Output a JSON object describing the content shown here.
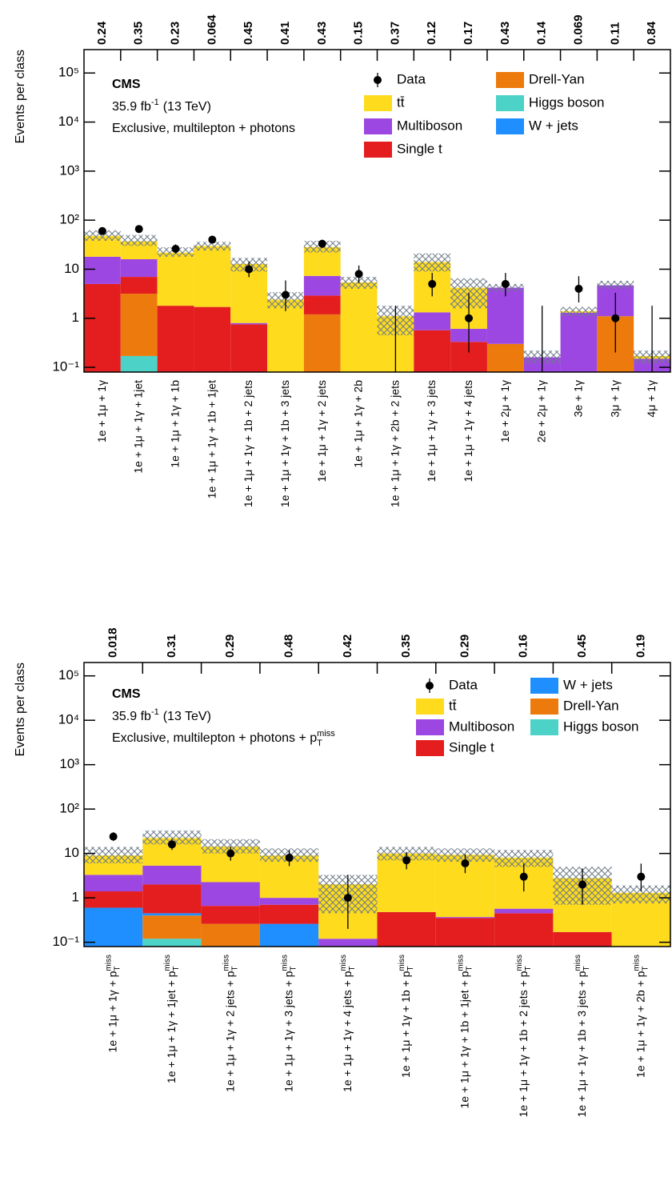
{
  "chart_data": [
    {
      "type": "bar",
      "stacked": true,
      "log_scale": true,
      "title": "CMS",
      "lumi": "35.9 fb",
      "lumi_exponent": "-1",
      "energy": "(13 TeV)",
      "subtitle": "Exclusive, multilepton + photons",
      "ylabel": "Events per class",
      "categories": [
        "1e + 1μ + 1γ",
        "1e + 1μ + 1γ + 1jet",
        "1e + 1μ + 1γ + 1b",
        "1e + 1μ + 1γ + 1b + 1jet",
        "1e + 1μ + 1γ + 1b + 2 jets",
        "1e + 1μ + 1γ + 1b + 3 jets",
        "1e + 1μ + 1γ + 2 jets",
        "1e + 1μ + 1γ + 2b",
        "1e + 1μ + 1γ + 2b + 2 jets",
        "1e + 1μ + 1γ + 3 jets",
        "1e + 1μ + 1γ + 4 jets",
        "1e + 2μ + 1γ",
        "2e + 2μ + 1γ",
        "3e + 1γ",
        "3μ + 1γ",
        "4μ + 1γ"
      ],
      "p_values": [
        0.24,
        0.35,
        0.23,
        0.064,
        0.45,
        0.41,
        0.43,
        0.15,
        0.37,
        0.12,
        0.17,
        0.43,
        0.14,
        0.069,
        0.11,
        0.84
      ],
      "series": [
        {
          "name": "W + jets",
          "color": "#1f8fff",
          "values": [
            0,
            0,
            0,
            0,
            0,
            0,
            0,
            0,
            0,
            0,
            0,
            0,
            0,
            0,
            0,
            0
          ]
        },
        {
          "name": "Higgs boson",
          "color": "#4dd2c8",
          "values": [
            0,
            0.17,
            0,
            0,
            0,
            0,
            0,
            0,
            0,
            0,
            0,
            0,
            0,
            0,
            0,
            0
          ]
        },
        {
          "name": "Drell-Yan",
          "color": "#ec7a0c",
          "values": [
            0,
            3.0,
            0,
            0,
            0,
            0,
            1.2,
            0,
            0,
            0,
            0,
            0.3,
            0,
            0,
            1.1,
            0
          ]
        },
        {
          "name": "Single t",
          "color": "#e41e1e",
          "values": [
            5,
            3.8,
            1.8,
            1.7,
            0.75,
            0,
            1.7,
            0,
            0,
            0.57,
            0.33,
            0,
            0,
            0,
            0,
            0
          ]
        },
        {
          "name": "Multiboson",
          "color": "#9d47e2",
          "values": [
            13,
            9,
            0,
            0,
            0.05,
            0,
            4.4,
            0,
            0,
            0.75,
            0.28,
            3.9,
            0.16,
            1.3,
            3.6,
            0.15
          ]
        },
        {
          "name": "tt̄",
          "color": "#fedb1d",
          "values": [
            30,
            21,
            20,
            28,
            12,
            2.4,
            21,
            5.4,
            1.1,
            12.7,
            3.6,
            0,
            0,
            0.1,
            0,
            0.02
          ]
        }
      ],
      "uncertainty": {
        "low": [
          38,
          30,
          18,
          24,
          9,
          1.6,
          22,
          4,
          0.45,
          9,
          1.6,
          3.5,
          0.12,
          1.1,
          4,
          0.12
        ],
        "high": [
          62,
          50,
          28,
          36,
          17,
          3.4,
          38,
          7,
          1.8,
          21,
          6.5,
          5,
          0.22,
          1.7,
          5.8,
          0.22
        ]
      },
      "data": {
        "name": "Data",
        "color": "#000000",
        "values": [
          60,
          66,
          26,
          40,
          10,
          3,
          33,
          8,
          0,
          5,
          1,
          5,
          0,
          4,
          1,
          0
        ],
        "err_low": [
          7.7,
          8.1,
          5.1,
          6.3,
          3.1,
          1.6,
          5.7,
          2.8,
          0,
          2.2,
          0.8,
          2.2,
          0,
          1.9,
          0.8,
          0
        ],
        "err_high": [
          8.8,
          9.1,
          6.1,
          7.4,
          4.3,
          2.9,
          6.8,
          3.9,
          1.8,
          3.4,
          2.3,
          3.4,
          1.8,
          3.2,
          2.3,
          1.8
        ]
      },
      "ylim": [
        0.08,
        300000
      ],
      "yticks": [
        {
          "value": 0.1,
          "label": "10⁻¹"
        },
        1,
        10,
        {
          "value": 100,
          "label": "10²"
        },
        {
          "value": 1000,
          "label": "10³"
        },
        {
          "value": 10000,
          "label": "10⁴"
        },
        {
          "value": 100000,
          "label": "10⁵"
        }
      ],
      "legend": "top-right"
    },
    {
      "type": "bar",
      "stacked": true,
      "log_scale": true,
      "title": "CMS",
      "lumi": "35.9 fb",
      "lumi_exponent": "-1",
      "energy": "(13 TeV)",
      "subtitle": "Exclusive, multilepton + photons + p",
      "met_label": {
        "sup": "miss",
        "sub": "T"
      },
      "ylabel": "Events per class",
      "categories": [
        "1e + 1μ + 1γ + p",
        "1e + 1μ + 1γ + 1jet + p",
        "1e + 1μ + 1γ + 2 jets + p",
        "1e + 1μ + 1γ + 3 jets + p",
        "1e + 1μ + 1γ + 4 jets + p",
        "1e + 1μ + 1γ + 1b + p",
        "1e + 1μ + 1γ + 1b + 1jet + p",
        "1e + 1μ + 1γ + 1b + 2 jets + p",
        "1e + 1μ + 1γ + 1b + 3 jets + p",
        "1e + 1μ + 1γ + 2b + p"
      ],
      "p_values": [
        0.018,
        0.31,
        0.29,
        0.48,
        0.42,
        0.35,
        0.29,
        0.16,
        0.45,
        0.19
      ],
      "series": [
        {
          "name": "Higgs boson",
          "color": "#4dd2c8",
          "values": [
            0,
            0.12,
            0,
            0,
            0,
            0,
            0,
            0,
            0,
            0
          ]
        },
        {
          "name": "Drell-Yan",
          "color": "#ec7a0c",
          "values": [
            0,
            0.28,
            0.26,
            0,
            0,
            0,
            0,
            0,
            0,
            0
          ]
        },
        {
          "name": "W + jets",
          "color": "#1f8fff",
          "values": [
            0.6,
            0.05,
            0,
            0.26,
            0,
            0,
            0,
            0,
            0,
            0
          ]
        },
        {
          "name": "Single t",
          "color": "#e41e1e",
          "values": [
            0.8,
            1.55,
            0.4,
            0.44,
            0,
            0.48,
            0.35,
            0.45,
            0.17,
            0
          ]
        },
        {
          "name": "Multiboson",
          "color": "#9d47e2",
          "values": [
            1.9,
            3.3,
            1.6,
            0.3,
            0.12,
            0,
            0.02,
            0.12,
            0,
            0
          ]
        },
        {
          "name": "tt̄",
          "color": "#fedb1d",
          "values": [
            5.7,
            17,
            12,
            8,
            1.9,
            9.5,
            9,
            7.5,
            2.6,
            1.3
          ]
        }
      ],
      "uncertainty": {
        "low": [
          6,
          16,
          10,
          6.5,
          0.45,
          7,
          6.5,
          5,
          0.7,
          0.75
        ],
        "high": [
          14,
          33,
          21,
          13,
          3.3,
          14,
          13,
          12,
          5,
          1.9
        ]
      },
      "data": {
        "name": "Data",
        "color": "#000000",
        "values": [
          24,
          16,
          10,
          8,
          1,
          7,
          6,
          3,
          2,
          3
        ],
        "err_low": [
          4.9,
          4,
          3.1,
          2.8,
          0.8,
          2.6,
          2.4,
          1.6,
          1.3,
          1.6
        ],
        "err_high": [
          6,
          5.1,
          4.3,
          3.9,
          2.3,
          3.8,
          3.6,
          2.9,
          2.6,
          2.9
        ]
      },
      "ylim": [
        0.08,
        200000
      ],
      "yticks": [
        {
          "value": 0.1,
          "label": "10⁻¹"
        },
        1,
        10,
        {
          "value": 100,
          "label": "10²"
        },
        {
          "value": 1000,
          "label": "10³"
        },
        {
          "value": 10000,
          "label": "10⁴"
        },
        {
          "value": 100000,
          "label": "10⁵"
        }
      ],
      "legend": "top-right"
    }
  ]
}
